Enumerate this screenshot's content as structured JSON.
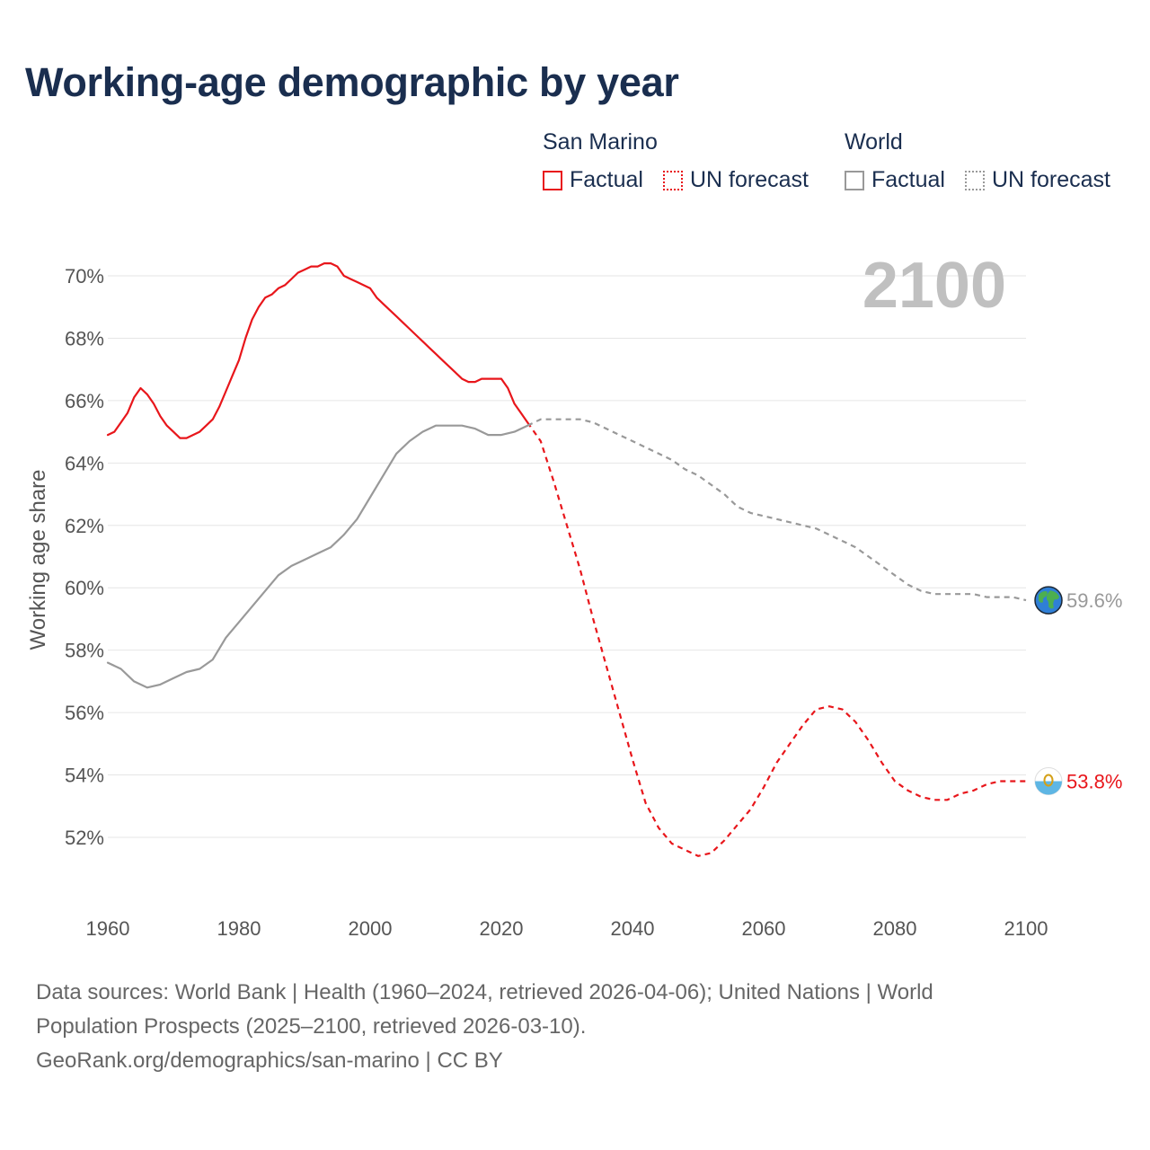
{
  "title": "Working-age demographic by year",
  "legend": {
    "groups": [
      {
        "name": "San Marino",
        "color": "#e8161b",
        "factual": "Factual",
        "forecast": "UN forecast"
      },
      {
        "name": "World",
        "color": "#999999",
        "factual": "Factual",
        "forecast": "UN forecast"
      }
    ]
  },
  "year_display": "2100",
  "footer": {
    "line1": "Data sources: World Bank | Health (1960–2024, retrieved 2026-04-06); United Nations | World",
    "line2": "Population Prospects (2025–2100, retrieved 2026-03-10).",
    "line3": "GeoRank.org/demographics/san-marino | CC BY"
  },
  "chart_data": {
    "type": "line",
    "title": "Working-age demographic by year",
    "xlabel": "",
    "ylabel": "Working age share",
    "xlim": [
      1960,
      2100
    ],
    "ylim": [
      50,
      71
    ],
    "x_ticks": [
      1960,
      1980,
      2000,
      2020,
      2040,
      2060,
      2080,
      2100
    ],
    "x_tick_labels": [
      "1960",
      "1980",
      "2000",
      "2020",
      "2040",
      "2060",
      "2080",
      "2100"
    ],
    "y_ticks": [
      52,
      54,
      56,
      58,
      60,
      62,
      64,
      66,
      68,
      70
    ],
    "y_tick_labels": [
      "52%",
      "54%",
      "56%",
      "58%",
      "60%",
      "62%",
      "64%",
      "66%",
      "68%",
      "70%"
    ],
    "grid": true,
    "series": [
      {
        "name": "San Marino",
        "segment": "Factual",
        "color": "#e8161b",
        "dashed": false,
        "x": [
          1960,
          1961,
          1962,
          1963,
          1964,
          1965,
          1966,
          1967,
          1968,
          1969,
          1970,
          1971,
          1972,
          1973,
          1974,
          1975,
          1976,
          1977,
          1978,
          1979,
          1980,
          1981,
          1982,
          1983,
          1984,
          1985,
          1986,
          1987,
          1988,
          1989,
          1990,
          1991,
          1992,
          1993,
          1994,
          1995,
          1996,
          1997,
          1998,
          1999,
          2000,
          2001,
          2002,
          2003,
          2004,
          2005,
          2006,
          2007,
          2008,
          2009,
          2010,
          2011,
          2012,
          2013,
          2014,
          2015,
          2016,
          2017,
          2018,
          2019,
          2020,
          2021,
          2022,
          2023,
          2024
        ],
        "y": [
          64.9,
          65.0,
          65.3,
          65.6,
          66.1,
          66.4,
          66.2,
          65.9,
          65.5,
          65.2,
          65.0,
          64.8,
          64.8,
          64.9,
          65.0,
          65.2,
          65.4,
          65.8,
          66.3,
          66.8,
          67.3,
          68.0,
          68.6,
          69.0,
          69.3,
          69.4,
          69.6,
          69.7,
          69.9,
          70.1,
          70.2,
          70.3,
          70.3,
          70.4,
          70.4,
          70.3,
          70.0,
          69.9,
          69.8,
          69.7,
          69.6,
          69.3,
          69.1,
          68.9,
          68.7,
          68.5,
          68.3,
          68.1,
          67.9,
          67.7,
          67.5,
          67.3,
          67.1,
          66.9,
          66.7,
          66.6,
          66.6,
          66.7,
          66.7,
          66.7,
          66.7,
          66.4,
          65.9,
          65.6,
          65.3
        ]
      },
      {
        "name": "San Marino",
        "segment": "UN forecast",
        "color": "#e8161b",
        "dashed": true,
        "x": [
          2024,
          2026,
          2028,
          2030,
          2032,
          2034,
          2036,
          2038,
          2040,
          2042,
          2044,
          2046,
          2048,
          2050,
          2052,
          2054,
          2056,
          2058,
          2060,
          2062,
          2064,
          2066,
          2068,
          2070,
          2072,
          2074,
          2076,
          2078,
          2080,
          2082,
          2084,
          2086,
          2088,
          2090,
          2092,
          2094,
          2096,
          2098,
          2100
        ],
        "y": [
          65.3,
          64.7,
          63.4,
          62.0,
          60.6,
          59.0,
          57.5,
          56.0,
          54.5,
          53.1,
          52.3,
          51.8,
          51.6,
          51.4,
          51.5,
          51.9,
          52.4,
          52.9,
          53.6,
          54.4,
          55.0,
          55.6,
          56.1,
          56.2,
          56.1,
          55.7,
          55.1,
          54.4,
          53.8,
          53.5,
          53.3,
          53.2,
          53.2,
          53.4,
          53.5,
          53.7,
          53.8,
          53.8,
          53.8
        ]
      },
      {
        "name": "World",
        "segment": "Factual",
        "color": "#999999",
        "dashed": false,
        "x": [
          1960,
          1962,
          1964,
          1966,
          1968,
          1970,
          1972,
          1974,
          1976,
          1978,
          1980,
          1982,
          1984,
          1986,
          1988,
          1990,
          1992,
          1994,
          1996,
          1998,
          2000,
          2002,
          2004,
          2006,
          2008,
          2010,
          2012,
          2014,
          2016,
          2018,
          2020,
          2022,
          2024
        ],
        "y": [
          57.6,
          57.4,
          57.0,
          56.8,
          56.9,
          57.1,
          57.3,
          57.4,
          57.7,
          58.4,
          58.9,
          59.4,
          59.9,
          60.4,
          60.7,
          60.9,
          61.1,
          61.3,
          61.7,
          62.2,
          62.9,
          63.6,
          64.3,
          64.7,
          65.0,
          65.2,
          65.2,
          65.2,
          65.1,
          64.9,
          64.9,
          65.0,
          65.2
        ]
      },
      {
        "name": "World",
        "segment": "UN forecast",
        "color": "#999999",
        "dashed": true,
        "x": [
          2024,
          2026,
          2028,
          2030,
          2032,
          2034,
          2036,
          2038,
          2040,
          2042,
          2044,
          2046,
          2048,
          2050,
          2052,
          2054,
          2056,
          2058,
          2060,
          2062,
          2064,
          2066,
          2068,
          2070,
          2072,
          2074,
          2076,
          2078,
          2080,
          2082,
          2084,
          2086,
          2088,
          2090,
          2092,
          2094,
          2096,
          2098,
          2100
        ],
        "y": [
          65.2,
          65.4,
          65.4,
          65.4,
          65.4,
          65.3,
          65.1,
          64.9,
          64.7,
          64.5,
          64.3,
          64.1,
          63.8,
          63.6,
          63.3,
          63.0,
          62.6,
          62.4,
          62.3,
          62.2,
          62.1,
          62.0,
          61.9,
          61.7,
          61.5,
          61.3,
          61.0,
          60.7,
          60.4,
          60.1,
          59.9,
          59.8,
          59.8,
          59.8,
          59.8,
          59.7,
          59.7,
          59.7,
          59.6
        ]
      }
    ],
    "end_labels": [
      {
        "name": "World",
        "value": 59.6,
        "label": "59.6%",
        "color": "#999999",
        "icon": "globe-icon"
      },
      {
        "name": "San Marino",
        "value": 53.8,
        "label": "53.8%",
        "color": "#e8161b",
        "icon": "san-marino-flag-icon"
      }
    ]
  }
}
